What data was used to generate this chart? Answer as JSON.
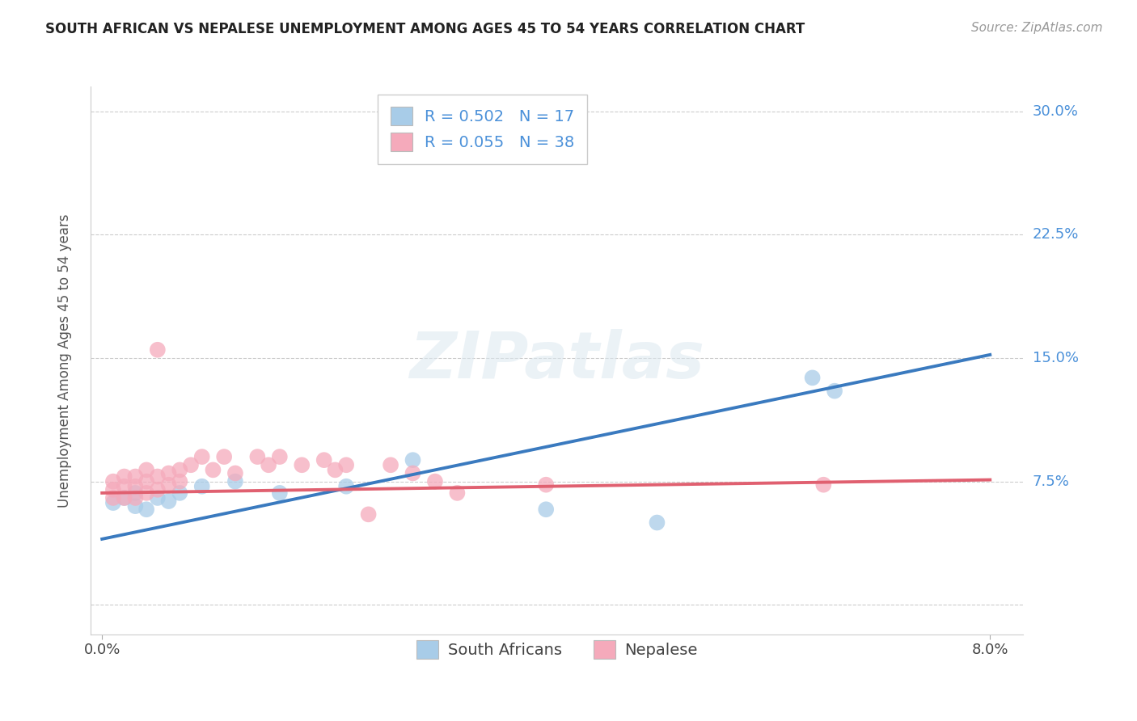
{
  "title": "SOUTH AFRICAN VS NEPALESE UNEMPLOYMENT AMONG AGES 45 TO 54 YEARS CORRELATION CHART",
  "source": "Source: ZipAtlas.com",
  "ylabel": "Unemployment Among Ages 45 to 54 years",
  "label_sa": "South Africans",
  "label_np": "Nepalese",
  "r_sa": "0.502",
  "n_sa": "17",
  "r_np": "0.055",
  "n_np": "38",
  "color_sa": "#a8cce8",
  "color_np": "#f5aabb",
  "color_sa_line": "#3a7abf",
  "color_np_line": "#e06070",
  "color_blue_text": "#4a90d9",
  "color_orange_text": "#e05a00",
  "bg_color": "#ffffff",
  "grid_color": "#cccccc",
  "xlim_min": -0.001,
  "xlim_max": 0.083,
  "ylim_min": -0.018,
  "ylim_max": 0.315,
  "xtick_vals": [
    0.0,
    0.08
  ],
  "xtick_labels": [
    "0.0%",
    "8.0%"
  ],
  "ytick_vals": [
    0.0,
    0.075,
    0.15,
    0.225,
    0.3
  ],
  "ytick_labels": [
    "",
    "7.5%",
    "15.0%",
    "22.5%",
    "30.0%"
  ],
  "sa_scatter_x": [
    0.001,
    0.002,
    0.003,
    0.003,
    0.004,
    0.005,
    0.006,
    0.007,
    0.009,
    0.012,
    0.016,
    0.022,
    0.028,
    0.04,
    0.05,
    0.064,
    0.066
  ],
  "sa_scatter_y": [
    0.062,
    0.065,
    0.06,
    0.068,
    0.058,
    0.065,
    0.063,
    0.068,
    0.072,
    0.075,
    0.068,
    0.072,
    0.088,
    0.058,
    0.05,
    0.138,
    0.13
  ],
  "np_scatter_x": [
    0.001,
    0.001,
    0.001,
    0.002,
    0.002,
    0.002,
    0.003,
    0.003,
    0.003,
    0.004,
    0.004,
    0.004,
    0.005,
    0.005,
    0.005,
    0.006,
    0.006,
    0.007,
    0.007,
    0.008,
    0.009,
    0.01,
    0.011,
    0.012,
    0.014,
    0.015,
    0.016,
    0.018,
    0.02,
    0.021,
    0.022,
    0.024,
    0.026,
    0.028,
    0.03,
    0.032,
    0.04,
    0.065
  ],
  "np_scatter_y": [
    0.065,
    0.07,
    0.075,
    0.065,
    0.072,
    0.078,
    0.065,
    0.072,
    0.078,
    0.068,
    0.075,
    0.082,
    0.07,
    0.078,
    0.155,
    0.073,
    0.08,
    0.075,
    0.082,
    0.085,
    0.09,
    0.082,
    0.09,
    0.08,
    0.09,
    0.085,
    0.09,
    0.085,
    0.088,
    0.082,
    0.085,
    0.055,
    0.085,
    0.08,
    0.075,
    0.068,
    0.073,
    0.073
  ],
  "sa_trend_x": [
    0.0,
    0.08
  ],
  "sa_trend_y": [
    0.04,
    0.152
  ],
  "np_trend_x": [
    0.0,
    0.08
  ],
  "np_trend_y": [
    0.068,
    0.076
  ],
  "scatter_size": 200,
  "scatter_alpha": 0.75,
  "trend_linewidth": 2.8,
  "title_fontsize": 12,
  "source_fontsize": 11,
  "tick_fontsize": 13,
  "legend_fontsize": 14,
  "ylabel_fontsize": 12
}
